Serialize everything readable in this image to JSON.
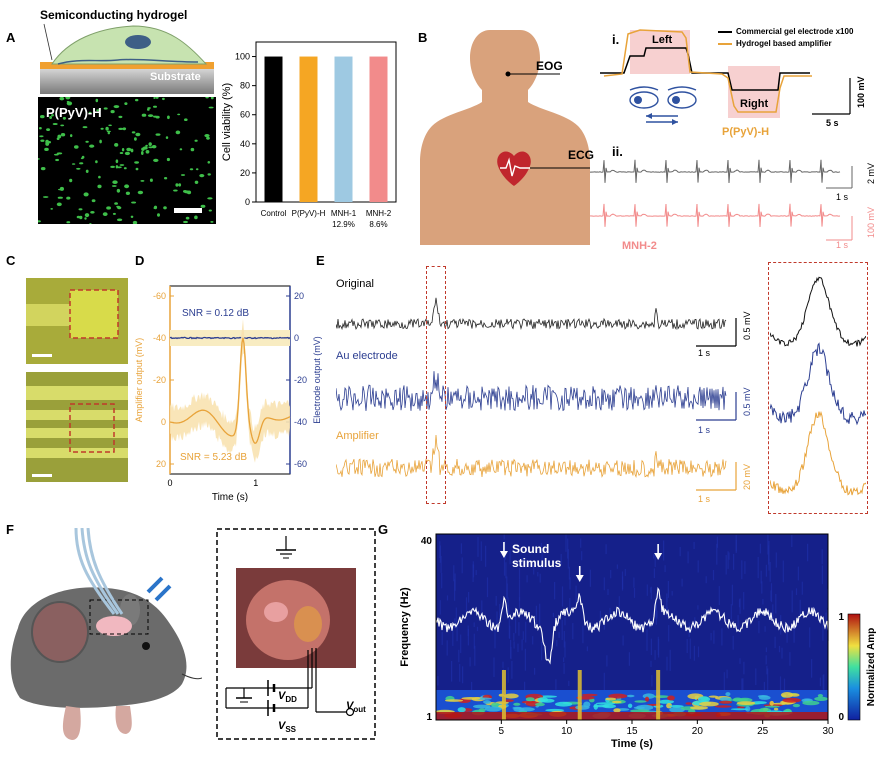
{
  "panel_labels": {
    "A": "A",
    "B": "B",
    "C": "C",
    "D": "D",
    "E": "E",
    "F": "F",
    "G": "G"
  },
  "panelA": {
    "hydrogel_label": "Semiconducting hydrogel",
    "substrate_label": "Substrate",
    "micrograph_label": "P(PyV)-H"
  },
  "chart_data": [
    {
      "id": "A-viability",
      "type": "bar",
      "categories": [
        "Control",
        "P(PyV)-H",
        "MNH-1",
        "MNH-2"
      ],
      "category_sublabels": [
        "",
        "",
        "12.9%",
        "8.6%"
      ],
      "values": [
        100,
        100,
        100,
        100
      ],
      "colors": [
        "#000000",
        "#f5a623",
        "#9ec9e2",
        "#f28b8b"
      ],
      "ylabel": "Cell viability (%)",
      "ylim": [
        0,
        110
      ],
      "yticks": [
        0,
        20,
        40,
        60,
        80,
        100
      ]
    },
    {
      "id": "D-snr",
      "type": "line",
      "xlabel": "Time (s)",
      "xticks": [
        0,
        1
      ],
      "xlim": [
        0,
        1.4
      ],
      "ylabel_left": "Amplifier output (mV)",
      "ylabel_right": "Electrode output (mV)",
      "yticks_left": [
        -60,
        -40,
        -20,
        0,
        20
      ],
      "yticks_right": [
        20,
        0,
        -20,
        -40,
        -60
      ],
      "series": [
        {
          "name": "Electrode",
          "color": "#2c3e91",
          "annotation": "SNR = 0.12 dB"
        },
        {
          "name": "Amplifier",
          "color": "#e8a33a",
          "annotation": "SNR = 5.23 dB"
        }
      ]
    },
    {
      "id": "G-spectrogram",
      "type": "heatmap",
      "xlabel": "Time (s)",
      "xticks": [
        5,
        10,
        15,
        20,
        25,
        30
      ],
      "ylabel": "Frequency (Hz)",
      "yticks": [
        1,
        40
      ],
      "colorbar_label": "Normalized Amp",
      "colorbar_ticks": [
        0,
        1
      ],
      "stimulus_times": [
        5.2,
        11,
        17
      ]
    }
  ],
  "panelB": {
    "eog_label": "EOG",
    "ecg_label": "ECG",
    "i_label": "i.",
    "ii_label": "ii.",
    "left_label": "Left",
    "right_label": "Right",
    "legend_commercial": "Commercial gel electrode x100",
    "legend_hydrogel": "Hydrogel based amplifier",
    "scale_mv": "100 mV",
    "scale_s": "5 s",
    "pyv_label": "P(PyV)-H",
    "ecg_scale_top": "2 mV",
    "ecg_scale_top_s": "1 s",
    "ecg_scale_bot": "100 mV",
    "ecg_scale_bot_s": "1 s",
    "mnh_label": "MNH-2"
  },
  "panelE": {
    "original": "Original",
    "au": "Au electrode",
    "amp": "Amplifier",
    "s1_mv": "0.5 mV",
    "s1_s": "1 s",
    "s2_mv": "0.5 mV",
    "s2_s": "1 s",
    "s3_mv": "20 mV",
    "s3_s": "1 s"
  },
  "panelF": {
    "vdd": "V",
    "vdd_sub": "DD",
    "vss": "V",
    "vss_sub": "SS",
    "vout": "V",
    "vout_sub": "out"
  },
  "panelG": {
    "stimulus": "Sound stimulus"
  },
  "colors": {
    "orange": "#e8a33a",
    "blue": "#2c3e91",
    "pink": "#f28b8b",
    "red_dash": "#c0392b",
    "skin": "#d9a27c"
  }
}
